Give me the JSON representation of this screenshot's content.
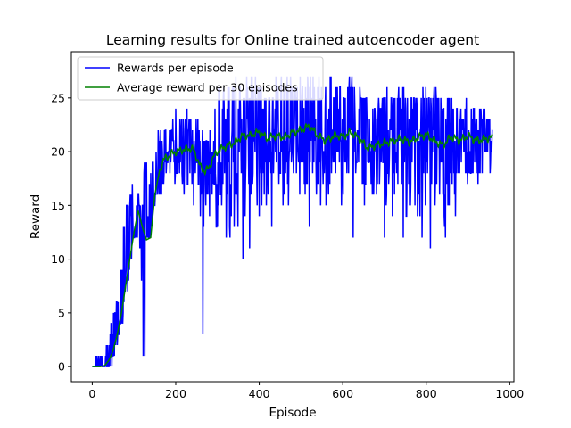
{
  "chart_data": {
    "type": "line",
    "title": "Learning results for Online trained autoencoder agent",
    "xlabel": "Episode",
    "ylabel": "Reward",
    "xlim": [
      -50,
      1010
    ],
    "ylim": [
      -1.4,
      29.3
    ],
    "xticks": [
      0,
      200,
      400,
      600,
      800,
      1000
    ],
    "yticks": [
      0,
      5,
      10,
      15,
      20,
      25
    ],
    "grid": false,
    "legend": "top-left",
    "series": [
      {
        "name": "Rewards per episode",
        "color": "#0000ff",
        "note": "raw per-episode rewards, 960 episodes; envelope values read off the plot",
        "x": [
          0,
          10,
          20,
          30,
          40,
          50,
          60,
          70,
          80,
          90,
          100,
          110,
          120,
          125,
          130,
          140,
          150,
          160,
          170,
          180,
          190,
          200,
          210,
          220,
          230,
          240,
          250,
          260,
          265,
          270,
          280,
          290,
          300,
          320,
          340,
          360,
          380,
          400,
          420,
          440,
          460,
          480,
          500,
          520,
          540,
          560,
          580,
          600,
          620,
          640,
          660,
          680,
          700,
          720,
          740,
          760,
          780,
          800,
          820,
          840,
          860,
          880,
          900,
          920,
          940,
          958
        ],
        "high": [
          0,
          1,
          1,
          1,
          4,
          5,
          7,
          12,
          15,
          17,
          17,
          16,
          15,
          19,
          19,
          19,
          20,
          22,
          23,
          22,
          23,
          24,
          24,
          24,
          24,
          23,
          23,
          22,
          22,
          21,
          21,
          25,
          27,
          26,
          27,
          27,
          27,
          27,
          26,
          27,
          27,
          27,
          27,
          27,
          27,
          27,
          27,
          26,
          27,
          26,
          25,
          24,
          26,
          26,
          26,
          26,
          25,
          26,
          26,
          25,
          25,
          24,
          25,
          24,
          24,
          24
        ],
        "low": [
          0,
          0,
          0,
          0,
          0,
          0,
          1,
          2,
          5,
          8,
          11,
          12,
          1,
          1,
          11,
          15,
          15,
          15,
          16,
          17,
          17,
          17,
          16,
          16,
          16,
          15,
          15,
          13,
          3,
          13,
          13,
          15,
          12,
          12,
          12,
          14,
          10,
          12,
          15,
          14,
          15,
          14,
          14,
          15,
          15,
          15,
          16,
          15,
          14,
          13,
          14,
          16,
          15,
          12,
          12,
          13,
          14,
          12,
          13,
          11,
          13,
          14,
          14,
          14,
          15,
          19
        ]
      },
      {
        "name": "Average reward per 30 episodes",
        "color": "#008000",
        "x": [
          0,
          20,
          30,
          40,
          50,
          60,
          70,
          80,
          90,
          100,
          110,
          120,
          130,
          140,
          150,
          160,
          170,
          180,
          190,
          200,
          220,
          240,
          250,
          260,
          270,
          280,
          290,
          300,
          320,
          340,
          360,
          380,
          390,
          400,
          420,
          440,
          460,
          480,
          500,
          520,
          540,
          560,
          580,
          600,
          620,
          640,
          660,
          680,
          700,
          720,
          740,
          760,
          780,
          800,
          820,
          840,
          860,
          880,
          900,
          920,
          940,
          958
        ],
        "y": [
          0,
          0,
          0.1,
          0.6,
          1.5,
          3.0,
          5.0,
          7.5,
          10.0,
          12.5,
          14.5,
          13.0,
          11.8,
          12.0,
          16.0,
          18.0,
          19.2,
          19.5,
          19.8,
          20.0,
          20.2,
          20.3,
          19.5,
          18.5,
          18.2,
          18.5,
          19.5,
          20.0,
          20.5,
          20.8,
          21.5,
          21.5,
          21.7,
          21.8,
          21.2,
          21.5,
          21.3,
          21.8,
          22.0,
          22.4,
          21.5,
          21.0,
          21.5,
          21.4,
          21.8,
          21.2,
          20.3,
          20.6,
          20.8,
          21.0,
          21.2,
          20.9,
          21.3,
          21.6,
          21.0,
          20.6,
          21.4,
          21.0,
          21.5,
          21.0,
          21.2,
          21.3
        ]
      }
    ]
  }
}
